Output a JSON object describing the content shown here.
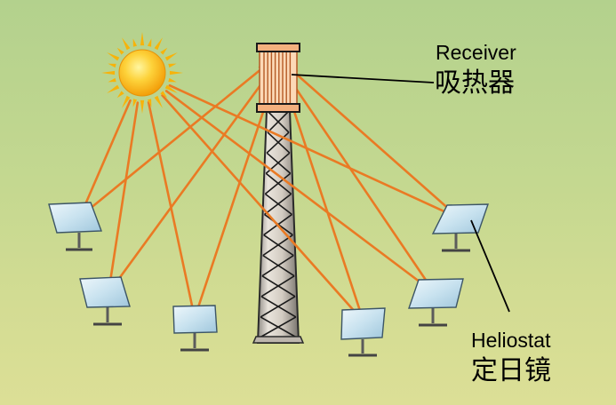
{
  "labels": {
    "receiver_en": "Receiver",
    "receiver_zh": "吸热器",
    "heliostat_en": "Heliostat",
    "heliostat_zh": "定日镜"
  },
  "colors": {
    "ray": "#ea7a24",
    "sun": "#f7b30a",
    "tower": "#d9d2c8",
    "mirror": "#cfe6f2",
    "background": "#c4d890"
  },
  "components": [
    "sun",
    "tower",
    "receiver",
    "heliostats",
    "sun-rays",
    "reflected-rays"
  ]
}
